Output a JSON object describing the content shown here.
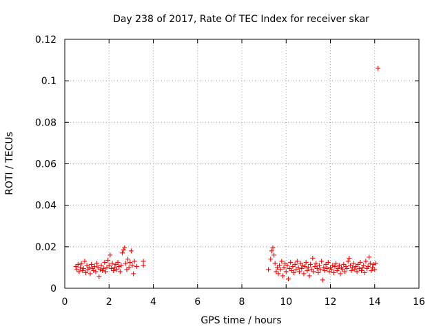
{
  "chart_data": {
    "type": "scatter",
    "title": "Day 238 of 2017, Rate Of TEC Index for receiver skar",
    "xlabel": "GPS time / hours",
    "ylabel": "ROTI / TECUs",
    "xlim": [
      0,
      16
    ],
    "ylim": [
      0,
      0.12
    ],
    "xticks": [
      0,
      2,
      4,
      6,
      8,
      10,
      12,
      14,
      16
    ],
    "yticks": [
      0,
      0.02,
      0.04,
      0.06,
      0.08,
      0.1,
      0.12
    ],
    "xtick_labels": [
      "0",
      "2",
      "4",
      "6",
      "8",
      "10",
      "12",
      "14",
      "16"
    ],
    "ytick_labels": [
      "0",
      "0.02",
      "0.04",
      "0.06",
      "0.08",
      "0.1",
      "0.12"
    ],
    "grid": true,
    "marker": "+",
    "color": "#ff0000",
    "points": [
      [
        0.5,
        0.0105
      ],
      [
        0.55,
        0.009
      ],
      [
        0.6,
        0.0115
      ],
      [
        0.65,
        0.008
      ],
      [
        0.7,
        0.01
      ],
      [
        0.75,
        0.012
      ],
      [
        0.8,
        0.0085
      ],
      [
        0.85,
        0.0095
      ],
      [
        0.9,
        0.013
      ],
      [
        0.95,
        0.0075
      ],
      [
        1.0,
        0.011
      ],
      [
        1.05,
        0.009
      ],
      [
        1.1,
        0.01
      ],
      [
        1.15,
        0.007
      ],
      [
        1.2,
        0.0115
      ],
      [
        1.25,
        0.0095
      ],
      [
        1.3,
        0.0085
      ],
      [
        1.35,
        0.0105
      ],
      [
        1.4,
        0.008
      ],
      [
        1.45,
        0.012
      ],
      [
        1.5,
        0.01
      ],
      [
        1.55,
        0.0055
      ],
      [
        1.6,
        0.009
      ],
      [
        1.65,
        0.011
      ],
      [
        1.7,
        0.0085
      ],
      [
        1.75,
        0.0095
      ],
      [
        1.8,
        0.0125
      ],
      [
        1.85,
        0.008
      ],
      [
        1.9,
        0.01
      ],
      [
        1.95,
        0.0135
      ],
      [
        2.0,
        0.011
      ],
      [
        2.05,
        0.016
      ],
      [
        2.1,
        0.0095
      ],
      [
        2.15,
        0.012
      ],
      [
        2.2,
        0.0085
      ],
      [
        2.25,
        0.01
      ],
      [
        2.3,
        0.0115
      ],
      [
        2.35,
        0.009
      ],
      [
        2.4,
        0.0125
      ],
      [
        2.45,
        0.0105
      ],
      [
        2.5,
        0.008
      ],
      [
        2.55,
        0.011
      ],
      [
        2.6,
        0.017
      ],
      [
        2.65,
        0.0185
      ],
      [
        2.7,
        0.0195
      ],
      [
        2.75,
        0.012
      ],
      [
        2.8,
        0.009
      ],
      [
        2.85,
        0.014
      ],
      [
        2.9,
        0.01
      ],
      [
        2.95,
        0.0125
      ],
      [
        3.0,
        0.018
      ],
      [
        3.05,
        0.011
      ],
      [
        3.1,
        0.007
      ],
      [
        3.15,
        0.013
      ],
      [
        3.25,
        0.0105
      ],
      [
        3.55,
        0.013
      ],
      [
        3.55,
        0.011
      ],
      [
        9.2,
        0.009
      ],
      [
        9.3,
        0.014
      ],
      [
        9.35,
        0.018
      ],
      [
        9.4,
        0.0195
      ],
      [
        9.45,
        0.016
      ],
      [
        9.5,
        0.012
      ],
      [
        9.55,
        0.008
      ],
      [
        9.6,
        0.01
      ],
      [
        9.65,
        0.007
      ],
      [
        9.7,
        0.011
      ],
      [
        9.75,
        0.009
      ],
      [
        9.8,
        0.013
      ],
      [
        9.85,
        0.006
      ],
      [
        9.9,
        0.01
      ],
      [
        9.95,
        0.012
      ],
      [
        10.0,
        0.008
      ],
      [
        10.05,
        0.011
      ],
      [
        10.1,
        0.0045
      ],
      [
        10.15,
        0.0095
      ],
      [
        10.2,
        0.0125
      ],
      [
        10.25,
        0.0085
      ],
      [
        10.3,
        0.0105
      ],
      [
        10.35,
        0.0075
      ],
      [
        10.4,
        0.0115
      ],
      [
        10.45,
        0.009
      ],
      [
        10.5,
        0.013
      ],
      [
        10.55,
        0.01
      ],
      [
        10.6,
        0.008
      ],
      [
        10.65,
        0.012
      ],
      [
        10.7,
        0.0095
      ],
      [
        10.75,
        0.011
      ],
      [
        10.8,
        0.007
      ],
      [
        10.85,
        0.0105
      ],
      [
        10.9,
        0.0125
      ],
      [
        10.95,
        0.0085
      ],
      [
        11.0,
        0.01
      ],
      [
        11.05,
        0.006
      ],
      [
        11.1,
        0.0115
      ],
      [
        11.15,
        0.009
      ],
      [
        11.2,
        0.0145
      ],
      [
        11.25,
        0.008
      ],
      [
        11.3,
        0.0105
      ],
      [
        11.35,
        0.012
      ],
      [
        11.4,
        0.0095
      ],
      [
        11.45,
        0.0075
      ],
      [
        11.5,
        0.011
      ],
      [
        11.55,
        0.009
      ],
      [
        11.6,
        0.013
      ],
      [
        11.65,
        0.004
      ],
      [
        11.7,
        0.01
      ],
      [
        11.75,
        0.0085
      ],
      [
        11.8,
        0.0115
      ],
      [
        11.85,
        0.0095
      ],
      [
        11.9,
        0.0125
      ],
      [
        11.95,
        0.008
      ],
      [
        12.0,
        0.01
      ],
      [
        12.05,
        0.009
      ],
      [
        12.1,
        0.011
      ],
      [
        12.15,
        0.0075
      ],
      [
        12.2,
        0.0105
      ],
      [
        12.25,
        0.012
      ],
      [
        12.3,
        0.0085
      ],
      [
        12.35,
        0.0095
      ],
      [
        12.4,
        0.011
      ],
      [
        12.45,
        0.007
      ],
      [
        12.5,
        0.01
      ],
      [
        12.55,
        0.009
      ],
      [
        12.6,
        0.0115
      ],
      [
        12.65,
        0.008
      ],
      [
        12.7,
        0.0105
      ],
      [
        12.75,
        0.0095
      ],
      [
        12.8,
        0.013
      ],
      [
        12.85,
        0.0145
      ],
      [
        12.9,
        0.011
      ],
      [
        12.95,
        0.0085
      ],
      [
        13.0,
        0.01
      ],
      [
        13.05,
        0.012
      ],
      [
        13.1,
        0.009
      ],
      [
        13.15,
        0.0105
      ],
      [
        13.2,
        0.008
      ],
      [
        13.25,
        0.0115
      ],
      [
        13.3,
        0.0095
      ],
      [
        13.35,
        0.0125
      ],
      [
        13.4,
        0.0085
      ],
      [
        13.45,
        0.01
      ],
      [
        13.5,
        0.011
      ],
      [
        13.55,
        0.0075
      ],
      [
        13.6,
        0.013
      ],
      [
        13.65,
        0.0095
      ],
      [
        13.7,
        0.0105
      ],
      [
        13.75,
        0.015
      ],
      [
        13.8,
        0.012
      ],
      [
        13.85,
        0.0085
      ],
      [
        13.9,
        0.01
      ],
      [
        13.95,
        0.0115
      ],
      [
        14.0,
        0.009
      ],
      [
        14.05,
        0.012
      ],
      [
        14.15,
        0.106
      ]
    ]
  }
}
